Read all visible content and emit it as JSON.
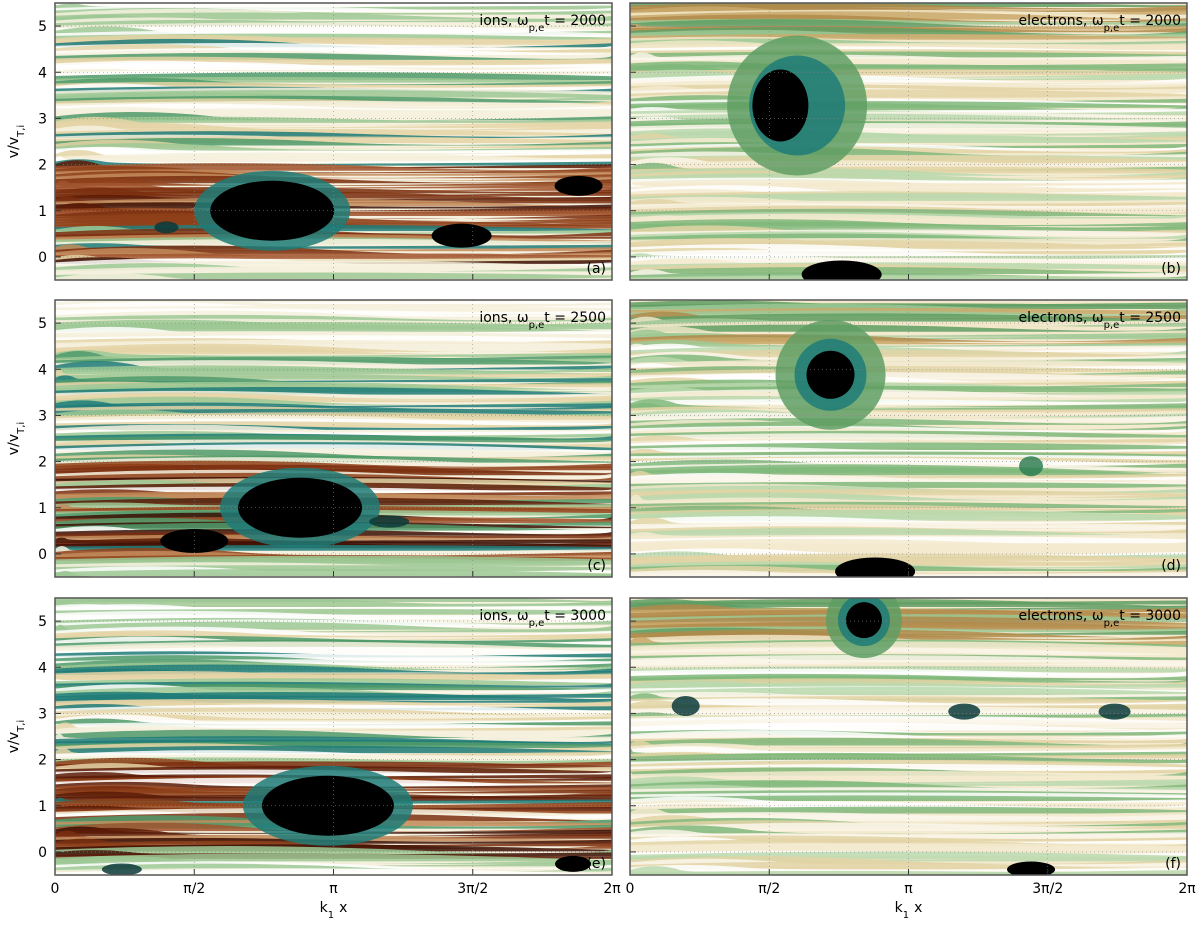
{
  "chart_data": [
    {
      "type": "image",
      "panel": "(a)",
      "annotation": {
        "text": "ions, ω",
        "subscript": "p,e",
        "suffix": "t = 2000"
      },
      "ylabel": {
        "text": "v/v",
        "subscript": "T,i"
      },
      "xlim": [
        0,
        6.2832
      ],
      "ylim": [
        -0.5,
        5.5
      ],
      "xticks": [
        0,
        {
          "value": 1.5708,
          "label": "π/2"
        },
        {
          "value": 3.1416,
          "label": "π"
        },
        {
          "value": 4.7124,
          "label": "3π/2"
        },
        {
          "value": 6.2832,
          "label": "2π"
        }
      ],
      "yticks": [
        0,
        1,
        2,
        3,
        4,
        5
      ],
      "grid": true
    },
    {
      "type": "image",
      "panel": "(b)",
      "annotation": {
        "text": "electrons, ω",
        "subscript": "p,e",
        "suffix": "t = 2000"
      },
      "xlim": [
        0,
        6.2832
      ],
      "ylim": [
        -0.5,
        5.5
      ],
      "xticks": [
        0,
        {
          "value": 1.5708,
          "label": "π/2"
        },
        {
          "value": 3.1416,
          "label": "π"
        },
        {
          "value": 4.7124,
          "label": "3π/2"
        },
        {
          "value": 6.2832,
          "label": "2π"
        }
      ],
      "yticks": [
        0,
        1,
        2,
        3,
        4,
        5
      ],
      "grid": true
    },
    {
      "type": "image",
      "panel": "(c)",
      "annotation": {
        "text": "ions, ω",
        "subscript": "p,e",
        "suffix": "t = 2500"
      },
      "ylabel": {
        "text": "v/v",
        "subscript": "T,i"
      },
      "xlim": [
        0,
        6.2832
      ],
      "ylim": [
        -0.5,
        5.5
      ],
      "xticks": [
        0,
        {
          "value": 1.5708,
          "label": "π/2"
        },
        {
          "value": 3.1416,
          "label": "π"
        },
        {
          "value": 4.7124,
          "label": "3π/2"
        },
        {
          "value": 6.2832,
          "label": "2π"
        }
      ],
      "yticks": [
        0,
        1,
        2,
        3,
        4,
        5
      ],
      "grid": true
    },
    {
      "type": "image",
      "panel": "(d)",
      "annotation": {
        "text": "electrons, ω",
        "subscript": "p,e",
        "suffix": "t = 2500"
      },
      "xlim": [
        0,
        6.2832
      ],
      "ylim": [
        -0.5,
        5.5
      ],
      "xticks": [
        0,
        {
          "value": 1.5708,
          "label": "π/2"
        },
        {
          "value": 3.1416,
          "label": "π"
        },
        {
          "value": 4.7124,
          "label": "3π/2"
        },
        {
          "value": 6.2832,
          "label": "2π"
        }
      ],
      "yticks": [
        0,
        1,
        2,
        3,
        4,
        5
      ],
      "grid": true
    },
    {
      "type": "image",
      "panel": "(e)",
      "annotation": {
        "text": "ions, ω",
        "subscript": "p,e",
        "suffix": "t = 3000"
      },
      "ylabel": {
        "text": "v/v",
        "subscript": "T,i"
      },
      "xlabel": {
        "text": "k",
        "subscript": "1",
        "suffix": "x"
      },
      "xlim": [
        0,
        6.2832
      ],
      "ylim": [
        -0.5,
        5.5
      ],
      "xticks": [
        0,
        {
          "value": 1.5708,
          "label": "π/2"
        },
        {
          "value": 3.1416,
          "label": "π"
        },
        {
          "value": 4.7124,
          "label": "3π/2"
        },
        {
          "value": 6.2832,
          "label": "2π"
        }
      ],
      "yticks": [
        0,
        1,
        2,
        3,
        4,
        5
      ],
      "grid": true
    },
    {
      "type": "image",
      "panel": "(f)",
      "annotation": {
        "text": "electrons, ω",
        "subscript": "p,e",
        "suffix": "t = 3000"
      },
      "xlabel": {
        "text": "k",
        "subscript": "1",
        "suffix": "x"
      },
      "xlim": [
        0,
        6.2832
      ],
      "ylim": [
        -0.5,
        5.5
      ],
      "xticks": [
        0,
        {
          "value": 1.5708,
          "label": "π/2"
        },
        {
          "value": 3.1416,
          "label": "π"
        },
        {
          "value": 4.7124,
          "label": "3π/2"
        },
        {
          "value": 6.2832,
          "label": "2π"
        }
      ],
      "yticks": [
        0,
        1,
        2,
        3,
        4,
        5
      ],
      "grid": true
    }
  ]
}
